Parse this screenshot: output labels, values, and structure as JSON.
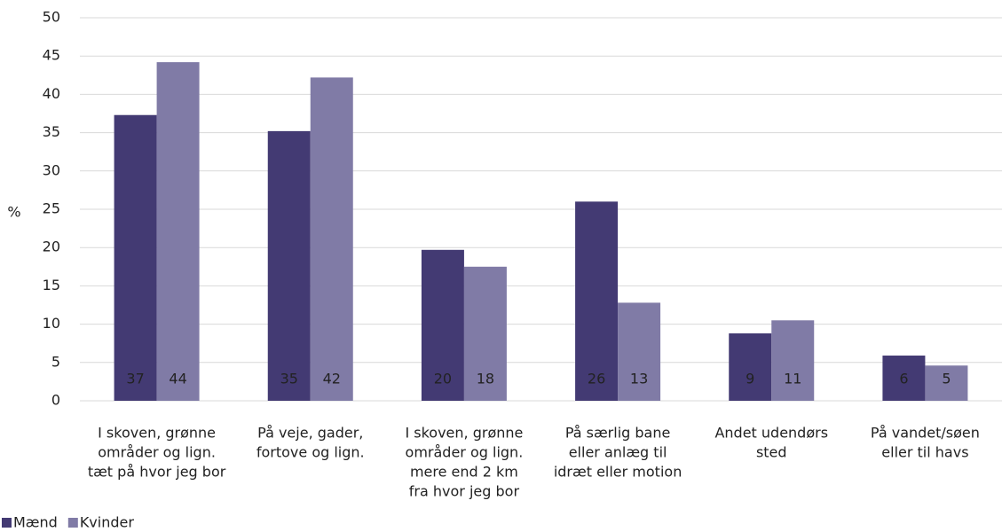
{
  "chart_data": {
    "type": "bar",
    "ylabel": "%",
    "categories": [
      [
        "I skoven, grønne",
        "områder og lign.",
        "tæt på hvor jeg bor"
      ],
      [
        "På veje, gader,",
        "fortove og lign."
      ],
      [
        "I skoven, grønne",
        "områder og lign.",
        "mere end 2 km",
        "fra hvor jeg bor"
      ],
      [
        "På særlig bane",
        "eller anlæg til",
        "idræt eller motion"
      ],
      [
        "Andet udendørs",
        "sted"
      ],
      [
        "På vandet/søen",
        "eller til havs"
      ]
    ],
    "series": [
      {
        "name": "Mænd",
        "color": "#433a73",
        "values": [
          37.3,
          35.2,
          19.7,
          26,
          8.8,
          5.9
        ],
        "value_labels": [
          "37",
          "35",
          "20",
          "26",
          "9",
          "6"
        ]
      },
      {
        "name": "Kvinder",
        "color": "#807ba6",
        "values": [
          44.2,
          42.2,
          17.5,
          12.8,
          10.5,
          4.6
        ],
        "value_labels": [
          "44",
          "42",
          "18",
          "13",
          "11",
          "5"
        ]
      }
    ],
    "ylim": [
      0,
      50
    ],
    "yticks": [
      0,
      5,
      10,
      15,
      20,
      25,
      30,
      35,
      40,
      45,
      50
    ],
    "grid": true,
    "legend": "bottom-left"
  }
}
